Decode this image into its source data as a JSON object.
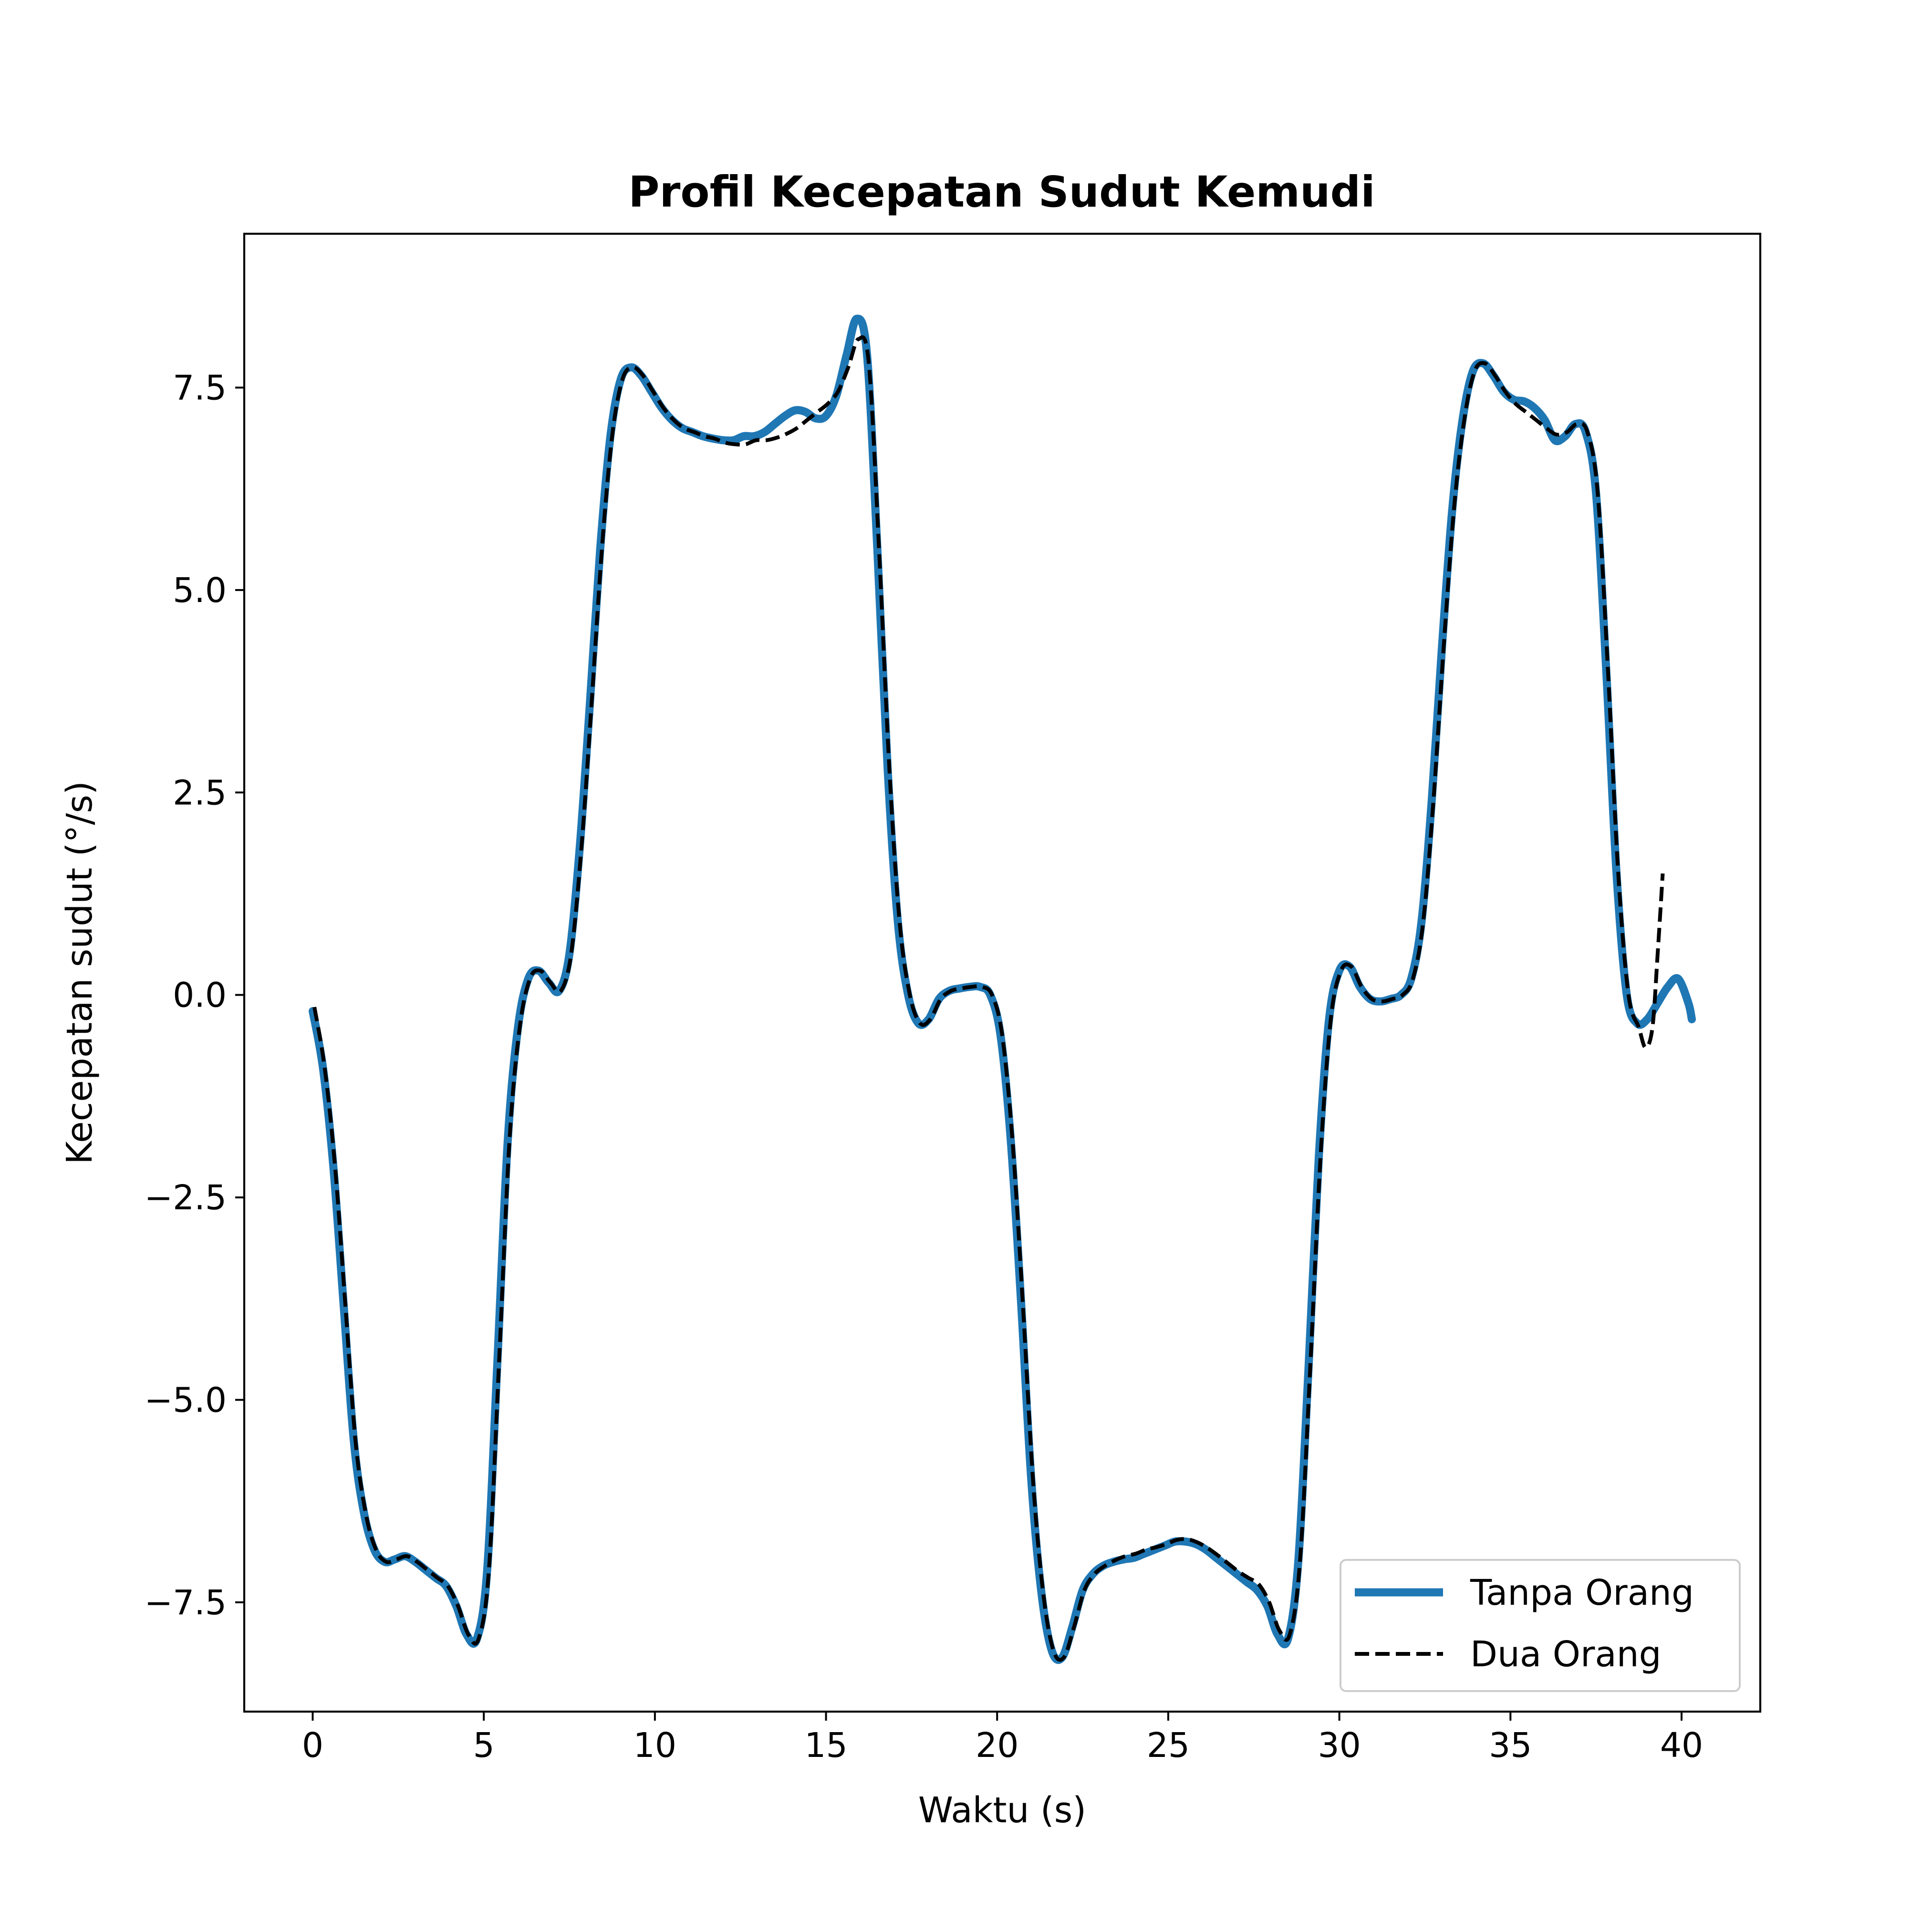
{
  "chart_data": {
    "type": "line",
    "title": "Profil Kecepatan Sudut Kemudi",
    "xlabel": "Waktu (s)",
    "ylabel": "Kecepatan sudut (°/s)",
    "xlim": [
      -2.0,
      42.3
    ],
    "ylim": [
      -8.85,
      9.4
    ],
    "xticks": [
      0,
      5,
      10,
      15,
      20,
      25,
      30,
      35,
      40
    ],
    "xtick_labels": [
      "0",
      "5",
      "10",
      "15",
      "20",
      "25",
      "30",
      "35",
      "40"
    ],
    "yticks": [
      -7.5,
      -5.0,
      -2.5,
      0.0,
      2.5,
      5.0,
      7.5
    ],
    "ytick_labels": [
      "−7.5",
      "−5.0",
      "−2.5",
      "0.0",
      "2.5",
      "5.0",
      "7.5"
    ],
    "grid": false,
    "legend_position": "lower-right",
    "series": [
      {
        "name": "Tanpa Orang",
        "color": "#1f77b4",
        "style": "solid",
        "points": [
          [
            0.0,
            -0.2
          ],
          [
            0.3,
            -0.9
          ],
          [
            0.6,
            -2.1
          ],
          [
            0.9,
            -3.8
          ],
          [
            1.2,
            -5.5
          ],
          [
            1.5,
            -6.4
          ],
          [
            1.8,
            -6.85
          ],
          [
            2.1,
            -7.0
          ],
          [
            2.4,
            -6.97
          ],
          [
            2.7,
            -6.93
          ],
          [
            3.0,
            -7.0
          ],
          [
            3.3,
            -7.1
          ],
          [
            3.6,
            -7.2
          ],
          [
            3.9,
            -7.3
          ],
          [
            4.2,
            -7.55
          ],
          [
            4.5,
            -7.9
          ],
          [
            4.8,
            -7.95
          ],
          [
            5.1,
            -7.1
          ],
          [
            5.4,
            -4.5
          ],
          [
            5.7,
            -1.8
          ],
          [
            6.0,
            -0.4
          ],
          [
            6.3,
            0.2
          ],
          [
            6.6,
            0.3
          ],
          [
            6.9,
            0.15
          ],
          [
            7.2,
            0.05
          ],
          [
            7.5,
            0.5
          ],
          [
            7.8,
            1.8
          ],
          [
            8.1,
            3.6
          ],
          [
            8.4,
            5.5
          ],
          [
            8.7,
            6.9
          ],
          [
            9.0,
            7.6
          ],
          [
            9.3,
            7.75
          ],
          [
            9.6,
            7.65
          ],
          [
            9.9,
            7.45
          ],
          [
            10.2,
            7.25
          ],
          [
            10.5,
            7.1
          ],
          [
            10.8,
            7.0
          ],
          [
            11.1,
            6.95
          ],
          [
            11.4,
            6.9
          ],
          [
            11.7,
            6.87
          ],
          [
            12.0,
            6.85
          ],
          [
            12.3,
            6.85
          ],
          [
            12.6,
            6.9
          ],
          [
            12.9,
            6.9
          ],
          [
            13.2,
            6.95
          ],
          [
            13.5,
            7.05
          ],
          [
            13.8,
            7.15
          ],
          [
            14.1,
            7.22
          ],
          [
            14.4,
            7.2
          ],
          [
            14.7,
            7.12
          ],
          [
            15.0,
            7.15
          ],
          [
            15.3,
            7.4
          ],
          [
            15.6,
            7.9
          ],
          [
            15.9,
            8.35
          ],
          [
            16.2,
            7.9
          ],
          [
            16.5,
            5.5
          ],
          [
            16.8,
            2.8
          ],
          [
            17.1,
            0.9
          ],
          [
            17.4,
            0.0
          ],
          [
            17.7,
            -0.35
          ],
          [
            18.0,
            -0.3
          ],
          [
            18.3,
            -0.05
          ],
          [
            18.6,
            0.05
          ],
          [
            18.9,
            0.08
          ],
          [
            19.2,
            0.1
          ],
          [
            19.5,
            0.1
          ],
          [
            19.8,
            0.0
          ],
          [
            20.1,
            -0.5
          ],
          [
            20.4,
            -1.8
          ],
          [
            20.7,
            -3.8
          ],
          [
            21.0,
            -6.0
          ],
          [
            21.3,
            -7.4
          ],
          [
            21.6,
            -8.1
          ],
          [
            21.9,
            -8.18
          ],
          [
            22.2,
            -7.8
          ],
          [
            22.5,
            -7.35
          ],
          [
            22.8,
            -7.15
          ],
          [
            23.1,
            -7.05
          ],
          [
            23.4,
            -7.0
          ],
          [
            23.7,
            -6.97
          ],
          [
            24.0,
            -6.95
          ],
          [
            24.3,
            -6.9
          ],
          [
            24.6,
            -6.85
          ],
          [
            24.9,
            -6.8
          ],
          [
            25.2,
            -6.75
          ],
          [
            25.5,
            -6.75
          ],
          [
            25.8,
            -6.78
          ],
          [
            26.1,
            -6.85
          ],
          [
            26.4,
            -6.95
          ],
          [
            26.7,
            -7.05
          ],
          [
            27.0,
            -7.15
          ],
          [
            27.3,
            -7.25
          ],
          [
            27.6,
            -7.35
          ],
          [
            27.9,
            -7.55
          ],
          [
            28.2,
            -7.9
          ],
          [
            28.5,
            -7.95
          ],
          [
            28.8,
            -7.0
          ],
          [
            29.1,
            -4.6
          ],
          [
            29.4,
            -2.0
          ],
          [
            29.7,
            -0.3
          ],
          [
            30.0,
            0.3
          ],
          [
            30.3,
            0.35
          ],
          [
            30.6,
            0.1
          ],
          [
            30.9,
            -0.05
          ],
          [
            31.2,
            -0.08
          ],
          [
            31.5,
            -0.05
          ],
          [
            31.8,
            0.0
          ],
          [
            32.1,
            0.2
          ],
          [
            32.4,
            0.9
          ],
          [
            32.7,
            2.4
          ],
          [
            33.0,
            4.3
          ],
          [
            33.3,
            6.0
          ],
          [
            33.6,
            7.1
          ],
          [
            33.9,
            7.7
          ],
          [
            34.2,
            7.8
          ],
          [
            34.5,
            7.65
          ],
          [
            34.8,
            7.45
          ],
          [
            35.1,
            7.35
          ],
          [
            35.4,
            7.33
          ],
          [
            35.7,
            7.25
          ],
          [
            36.0,
            7.1
          ],
          [
            36.3,
            6.85
          ],
          [
            36.6,
            6.9
          ],
          [
            36.9,
            7.05
          ],
          [
            37.2,
            6.95
          ],
          [
            37.5,
            6.2
          ],
          [
            37.8,
            4.0
          ],
          [
            38.1,
            1.5
          ],
          [
            38.4,
            0.0
          ],
          [
            38.7,
            -0.35
          ],
          [
            39.0,
            -0.3
          ],
          [
            39.3,
            -0.1
          ],
          [
            39.6,
            0.1
          ],
          [
            39.9,
            0.2
          ],
          [
            40.2,
            -0.1
          ],
          [
            40.3,
            -0.3
          ]
        ]
      },
      {
        "name": "Dua Orang",
        "color": "#000000",
        "style": "dashed",
        "points": [
          [
            0.05,
            -0.15
          ],
          [
            0.35,
            -0.9
          ],
          [
            0.65,
            -2.1
          ],
          [
            0.95,
            -3.8
          ],
          [
            1.25,
            -5.5
          ],
          [
            1.55,
            -6.4
          ],
          [
            1.85,
            -6.85
          ],
          [
            2.15,
            -7.0
          ],
          [
            2.45,
            -6.97
          ],
          [
            2.75,
            -6.93
          ],
          [
            3.05,
            -7.0
          ],
          [
            3.35,
            -7.1
          ],
          [
            3.65,
            -7.2
          ],
          [
            3.95,
            -7.3
          ],
          [
            4.25,
            -7.55
          ],
          [
            4.55,
            -7.9
          ],
          [
            4.85,
            -7.95
          ],
          [
            5.15,
            -7.1
          ],
          [
            5.45,
            -4.5
          ],
          [
            5.75,
            -1.8
          ],
          [
            6.05,
            -0.4
          ],
          [
            6.35,
            0.2
          ],
          [
            6.65,
            0.3
          ],
          [
            6.95,
            0.15
          ],
          [
            7.25,
            0.05
          ],
          [
            7.55,
            0.5
          ],
          [
            7.85,
            1.8
          ],
          [
            8.15,
            3.6
          ],
          [
            8.45,
            5.5
          ],
          [
            8.75,
            6.9
          ],
          [
            9.05,
            7.6
          ],
          [
            9.35,
            7.75
          ],
          [
            9.65,
            7.65
          ],
          [
            9.95,
            7.45
          ],
          [
            10.25,
            7.25
          ],
          [
            10.55,
            7.1
          ],
          [
            10.85,
            7.0
          ],
          [
            11.15,
            6.95
          ],
          [
            11.45,
            6.9
          ],
          [
            11.75,
            6.87
          ],
          [
            12.05,
            6.82
          ],
          [
            12.35,
            6.8
          ],
          [
            12.65,
            6.8
          ],
          [
            12.95,
            6.85
          ],
          [
            13.25,
            6.85
          ],
          [
            13.55,
            6.88
          ],
          [
            13.85,
            6.93
          ],
          [
            14.15,
            7.0
          ],
          [
            14.45,
            7.1
          ],
          [
            14.75,
            7.2
          ],
          [
            15.05,
            7.3
          ],
          [
            15.35,
            7.45
          ],
          [
            15.65,
            7.75
          ],
          [
            15.95,
            8.1
          ],
          [
            16.25,
            7.8
          ],
          [
            16.55,
            5.5
          ],
          [
            16.85,
            2.8
          ],
          [
            17.15,
            0.9
          ],
          [
            17.45,
            0.0
          ],
          [
            17.75,
            -0.35
          ],
          [
            18.05,
            -0.3
          ],
          [
            18.35,
            -0.05
          ],
          [
            18.65,
            0.05
          ],
          [
            18.95,
            0.08
          ],
          [
            19.25,
            0.1
          ],
          [
            19.55,
            0.1
          ],
          [
            19.85,
            0.0
          ],
          [
            20.15,
            -0.5
          ],
          [
            20.45,
            -1.8
          ],
          [
            20.75,
            -3.8
          ],
          [
            21.05,
            -6.0
          ],
          [
            21.35,
            -7.4
          ],
          [
            21.65,
            -8.1
          ],
          [
            21.95,
            -8.18
          ],
          [
            22.25,
            -7.8
          ],
          [
            22.55,
            -7.35
          ],
          [
            22.85,
            -7.15
          ],
          [
            23.15,
            -7.05
          ],
          [
            23.45,
            -6.98
          ],
          [
            23.75,
            -6.93
          ],
          [
            24.05,
            -6.9
          ],
          [
            24.35,
            -6.85
          ],
          [
            24.65,
            -6.82
          ],
          [
            24.95,
            -6.78
          ],
          [
            25.25,
            -6.73
          ],
          [
            25.55,
            -6.72
          ],
          [
            25.85,
            -6.76
          ],
          [
            26.15,
            -6.83
          ],
          [
            26.45,
            -6.92
          ],
          [
            26.75,
            -7.02
          ],
          [
            27.05,
            -7.12
          ],
          [
            27.35,
            -7.2
          ],
          [
            27.65,
            -7.28
          ],
          [
            27.95,
            -7.5
          ],
          [
            28.25,
            -7.85
          ],
          [
            28.55,
            -7.9
          ],
          [
            28.85,
            -7.0
          ],
          [
            29.15,
            -4.6
          ],
          [
            29.45,
            -2.0
          ],
          [
            29.75,
            -0.3
          ],
          [
            30.05,
            0.3
          ],
          [
            30.35,
            0.35
          ],
          [
            30.65,
            0.1
          ],
          [
            30.95,
            -0.05
          ],
          [
            31.25,
            -0.08
          ],
          [
            31.55,
            -0.05
          ],
          [
            31.85,
            0.0
          ],
          [
            32.15,
            0.2
          ],
          [
            32.45,
            0.9
          ],
          [
            32.75,
            2.4
          ],
          [
            33.05,
            4.3
          ],
          [
            33.35,
            6.0
          ],
          [
            33.65,
            7.1
          ],
          [
            33.95,
            7.7
          ],
          [
            34.25,
            7.8
          ],
          [
            34.55,
            7.65
          ],
          [
            34.85,
            7.45
          ],
          [
            35.15,
            7.3
          ],
          [
            35.45,
            7.2
          ],
          [
            35.75,
            7.1
          ],
          [
            36.05,
            7.0
          ],
          [
            36.35,
            6.92
          ],
          [
            36.65,
            6.95
          ],
          [
            36.95,
            7.05
          ],
          [
            37.25,
            6.95
          ],
          [
            37.55,
            6.2
          ],
          [
            37.85,
            4.0
          ],
          [
            38.15,
            1.5
          ],
          [
            38.45,
            0.0
          ],
          [
            38.75,
            -0.4
          ],
          [
            38.95,
            -0.65
          ],
          [
            39.15,
            -0.4
          ],
          [
            39.3,
            0.5
          ],
          [
            39.45,
            1.5
          ]
        ]
      }
    ]
  }
}
